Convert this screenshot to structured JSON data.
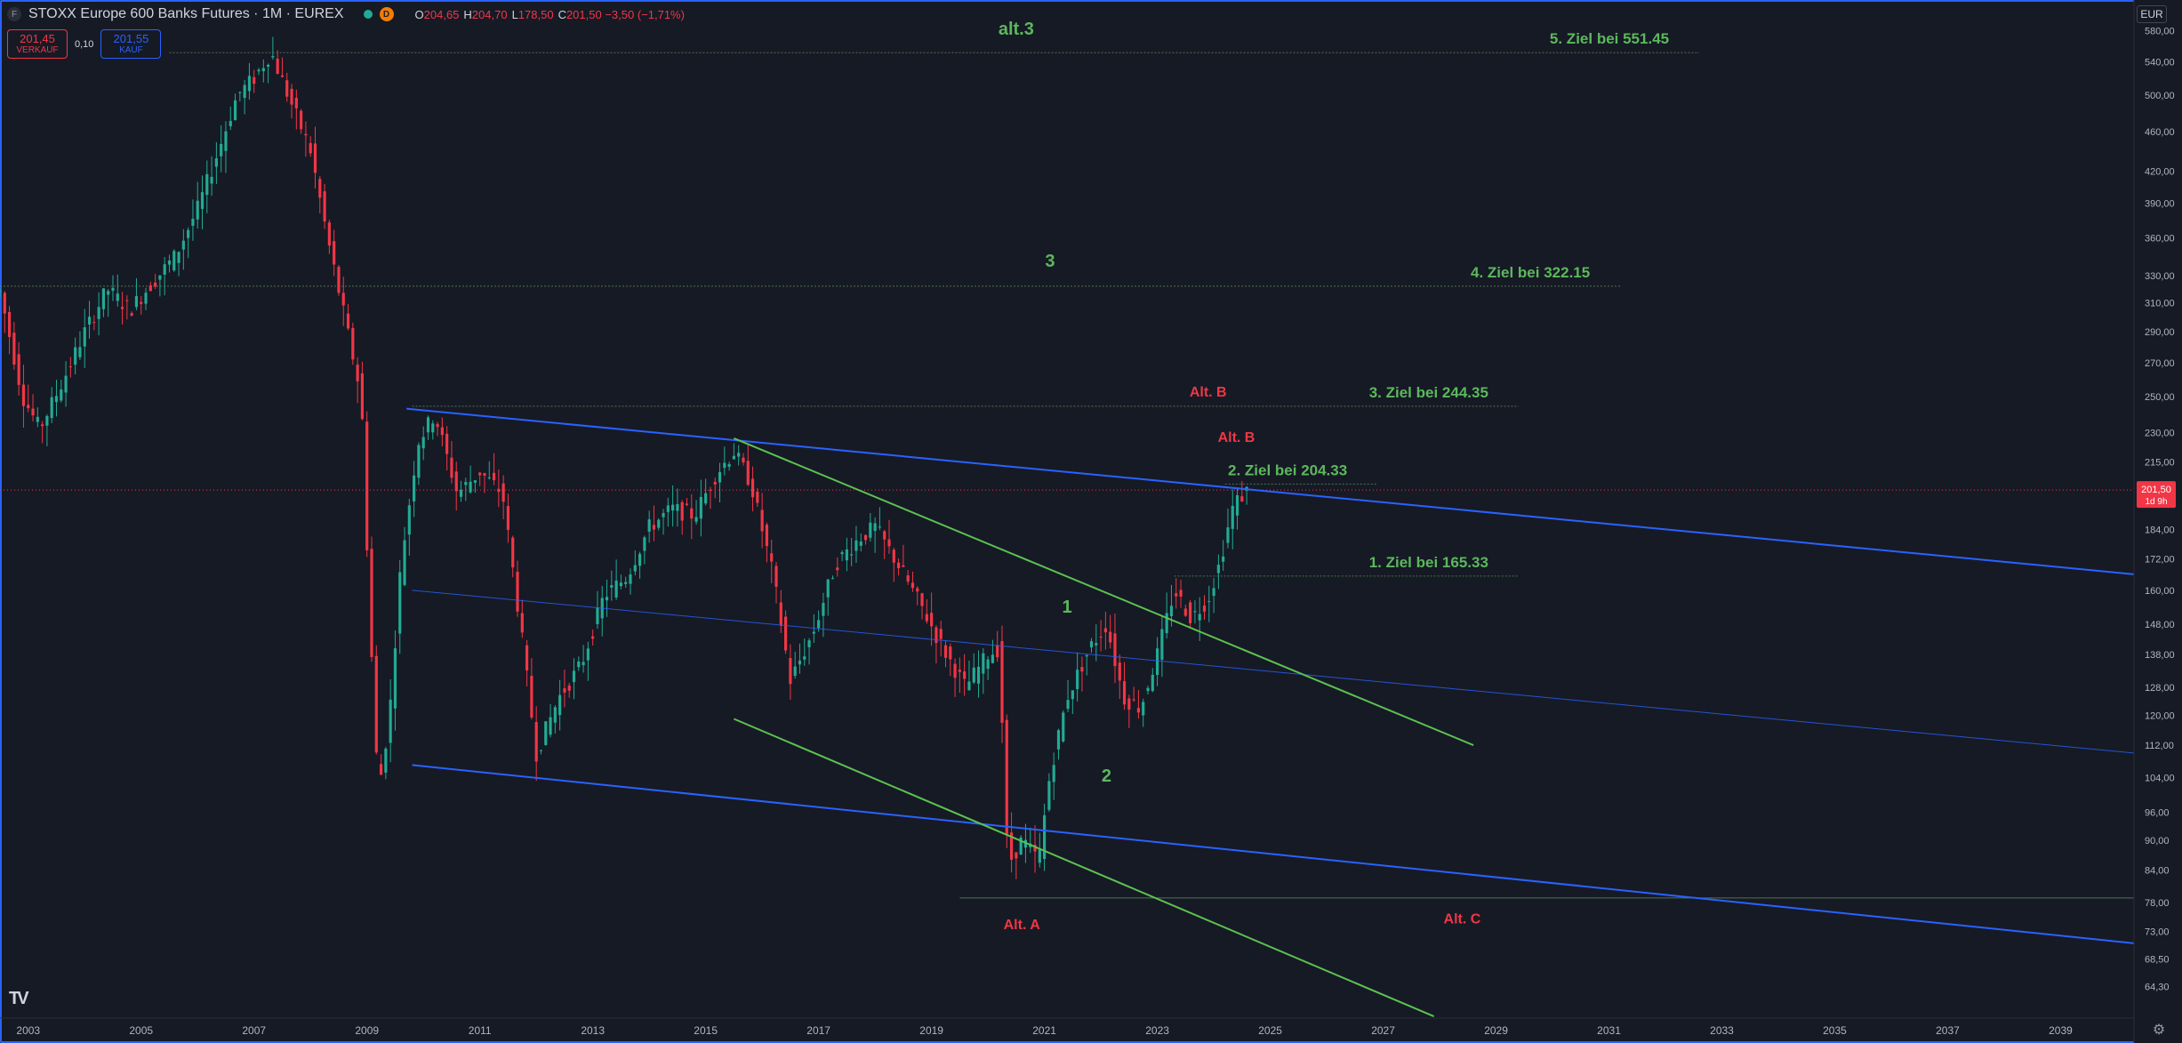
{
  "header": {
    "symbol_icon": "F",
    "title": "STOXX Europe 600 Banks Futures · 1M · EUREX",
    "delay_badge": "D",
    "ohlc": [
      {
        "key": "O",
        "value": "204,65"
      },
      {
        "key": "H",
        "value": "204,70"
      },
      {
        "key": "L",
        "value": "178,50"
      },
      {
        "key": "C",
        "value": "201,50 −3,50 (−1,71%)"
      }
    ]
  },
  "trade": {
    "sell_price": "201,45",
    "sell_label": "VERKAUF",
    "spread": "0,10",
    "buy_price": "201,55",
    "buy_label": "KAUF"
  },
  "currency": "EUR",
  "logo": "TV",
  "colors": {
    "background": "#161a25",
    "up": "#22ab94",
    "down": "#f23645",
    "channel": "#2962ff",
    "wave_line": "#5cc250",
    "target_text": "#5cb85c",
    "alt_text": "#f23645"
  },
  "chart_data": {
    "type": "candlestick",
    "title": "STOXX Europe 600 Banks Futures · 1M · EUREX",
    "y_scale": "log",
    "ylim": [
      61,
      600
    ],
    "xlim": [
      2002.5,
      2040.3
    ],
    "x_ticks": [
      "2003",
      "2005",
      "2007",
      "2009",
      "2011",
      "2013",
      "2015",
      "2017",
      "2019",
      "2021",
      "2023",
      "2025",
      "2027",
      "2029",
      "2031",
      "2033",
      "2035",
      "2037",
      "2039"
    ],
    "y_ticks": [
      "580,00",
      "540,00",
      "500,00",
      "460,00",
      "420,00",
      "390,00",
      "360,00",
      "330,00",
      "310,00",
      "290,00",
      "270,00",
      "250,00",
      "230,00",
      "215,00",
      "184,00",
      "172,00",
      "160,00",
      "148,00",
      "138,00",
      "128,00",
      "120,00",
      "112,00",
      "104,00",
      "96,00",
      "90,00",
      "84,00",
      "78,00",
      "73,00",
      "68,50",
      "64,30"
    ],
    "last_price": "201,50",
    "last_price_countdown": "1d 9h",
    "price_path": [
      [
        2002.5,
        318
      ],
      [
        2002.9,
        250
      ],
      [
        2003.2,
        232
      ],
      [
        2003.6,
        258
      ],
      [
        2004.0,
        290
      ],
      [
        2004.4,
        320
      ],
      [
        2004.8,
        305
      ],
      [
        2005.1,
        320
      ],
      [
        2005.6,
        345
      ],
      [
        2006.0,
        385
      ],
      [
        2006.4,
        445
      ],
      [
        2006.7,
        500
      ],
      [
        2007.0,
        520
      ],
      [
        2007.3,
        552
      ],
      [
        2007.6,
        500
      ],
      [
        2008.0,
        440
      ],
      [
        2008.3,
        360
      ],
      [
        2008.6,
        300
      ],
      [
        2008.9,
        250
      ],
      [
        2009.05,
        150
      ],
      [
        2009.2,
        100
      ],
      [
        2009.4,
        120
      ],
      [
        2009.6,
        170
      ],
      [
        2009.9,
        225
      ],
      [
        2010.2,
        240
      ],
      [
        2010.6,
        200
      ],
      [
        2011.0,
        210
      ],
      [
        2011.4,
        200
      ],
      [
        2011.7,
        150
      ],
      [
        2012.0,
        110
      ],
      [
        2012.4,
        125
      ],
      [
        2012.8,
        135
      ],
      [
        2013.2,
        158
      ],
      [
        2013.6,
        165
      ],
      [
        2014.0,
        185
      ],
      [
        2014.4,
        193
      ],
      [
        2014.8,
        190
      ],
      [
        2015.2,
        210
      ],
      [
        2015.5,
        220
      ],
      [
        2015.8,
        205
      ],
      [
        2016.2,
        165
      ],
      [
        2016.5,
        130
      ],
      [
        2016.9,
        145
      ],
      [
        2017.3,
        170
      ],
      [
        2017.7,
        180
      ],
      [
        2018.0,
        185
      ],
      [
        2018.4,
        170
      ],
      [
        2018.8,
        155
      ],
      [
        2019.2,
        140
      ],
      [
        2019.6,
        128
      ],
      [
        2020.0,
        138
      ],
      [
        2020.2,
        140
      ],
      [
        2020.35,
        85
      ],
      [
        2020.6,
        90
      ],
      [
        2020.9,
        86
      ],
      [
        2021.1,
        105
      ],
      [
        2021.4,
        125
      ],
      [
        2021.8,
        140
      ],
      [
        2022.1,
        148
      ],
      [
        2022.4,
        125
      ],
      [
        2022.7,
        122
      ],
      [
        2023.0,
        138
      ],
      [
        2023.3,
        160
      ],
      [
        2023.6,
        150
      ],
      [
        2023.9,
        157
      ],
      [
        2024.1,
        170
      ],
      [
        2024.35,
        195
      ],
      [
        2024.6,
        201.5
      ]
    ],
    "channel_lines": [
      {
        "from": [
          2009.7,
          243
        ],
        "to": [
          2040.3,
          166
        ]
      },
      {
        "from": [
          2009.8,
          160
        ],
        "to": [
          2040.3,
          110
        ]
      },
      {
        "from": [
          2009.8,
          107
        ],
        "to": [
          2040.3,
          71
        ]
      }
    ],
    "wave_lines": [
      {
        "from": [
          2015.5,
          227
        ],
        "to": [
          2028.6,
          112
        ]
      },
      {
        "from": [
          2015.5,
          119
        ],
        "to": [
          2027.9,
          60
        ]
      }
    ],
    "levels": [
      {
        "label": "5. Ziel bei 551.45",
        "price": 551.45,
        "from": 2005.5,
        "to": 2032.6
      },
      {
        "label": "4. Ziel bei 322.15",
        "price": 322.15,
        "from": 2002.5,
        "to": 2031.2
      },
      {
        "label": "3. Ziel bei 244.35",
        "price": 244.35,
        "from": 2009.8,
        "to": 2029.4
      },
      {
        "label": "2. Ziel bei 204.33",
        "price": 204.33,
        "from": 2024.2,
        "to": 2026.9
      },
      {
        "label": "1. Ziel bei 165.33",
        "price": 165.33,
        "from": 2023.3,
        "to": 2029.4
      },
      {
        "label": "",
        "price": 78.8,
        "from": 2019.5,
        "to": 2040.3
      }
    ],
    "wave_labels": [
      {
        "text": "alt.3",
        "x": 2020.5,
        "y": 575,
        "color": "green"
      },
      {
        "text": "3",
        "x": 2021.1,
        "y": 337,
        "color": "green"
      },
      {
        "text": "1",
        "x": 2021.4,
        "y": 152,
        "color": "green"
      },
      {
        "text": "2",
        "x": 2022.1,
        "y": 103,
        "color": "green"
      },
      {
        "text": "Alt. B",
        "x": 2023.9,
        "y": 250,
        "color": "red"
      },
      {
        "text": "Alt. B",
        "x": 2024.4,
        "y": 225,
        "color": "red"
      },
      {
        "text": "Alt. A",
        "x": 2020.6,
        "y": 73.3,
        "color": "red"
      },
      {
        "text": "Alt. C",
        "x": 2028.4,
        "y": 74.3,
        "color": "red"
      }
    ]
  }
}
